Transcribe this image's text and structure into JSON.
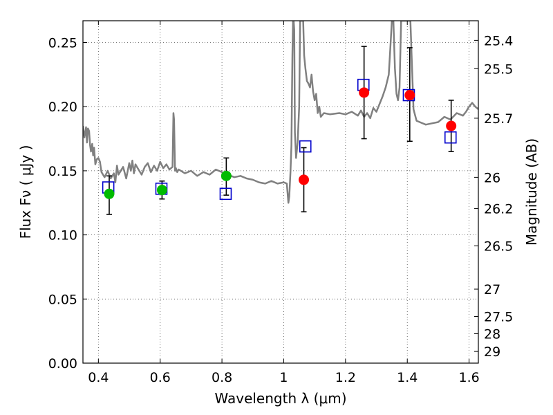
{
  "chart_data": {
    "type": "scatter",
    "xlabel": "Wavelength  λ (μm)",
    "ylabel": "Flux  Fν  ( μJy )",
    "y2label": "Magnitude (AB)",
    "xlim": [
      0.35,
      1.63
    ],
    "ylim": [
      0.0,
      0.267
    ],
    "grid": true,
    "x_ticks": [
      0.4,
      0.6,
      0.8,
      1.0,
      1.2,
      1.4,
      1.6
    ],
    "x_tick_labels": [
      "0.4",
      "0.6",
      "0.8",
      "1",
      "1.2",
      "1.4",
      "1.6"
    ],
    "y_ticks": [
      0.0,
      0.05,
      0.1,
      0.15,
      0.2,
      0.25
    ],
    "y_tick_labels": [
      "0.00",
      "0.05",
      "0.10",
      "0.15",
      "0.20",
      "0.25"
    ],
    "y2_ticks": [
      {
        "label": "25.4",
        "flux": 0.2517
      },
      {
        "label": "25.5",
        "flux": 0.2296
      },
      {
        "label": "25.7",
        "flux": 0.191
      },
      {
        "label": "26",
        "flux": 0.1449
      },
      {
        "label": "26.2",
        "flux": 0.1205
      },
      {
        "label": "26.5",
        "flux": 0.0914
      },
      {
        "label": "27",
        "flux": 0.0577
      },
      {
        "label": "27.5",
        "flux": 0.0364
      },
      {
        "label": "28",
        "flux": 0.0229
      },
      {
        "label": "29",
        "flux": 0.0091
      }
    ],
    "model_spectrum": {
      "color": "#808080",
      "x": [
        0.35,
        0.355,
        0.36,
        0.363,
        0.366,
        0.37,
        0.373,
        0.376,
        0.38,
        0.383,
        0.386,
        0.39,
        0.395,
        0.4,
        0.405,
        0.41,
        0.42,
        0.43,
        0.44,
        0.45,
        0.455,
        0.46,
        0.465,
        0.47,
        0.48,
        0.49,
        0.5,
        0.505,
        0.51,
        0.515,
        0.52,
        0.53,
        0.54,
        0.55,
        0.56,
        0.57,
        0.58,
        0.59,
        0.6,
        0.61,
        0.62,
        0.63,
        0.64,
        0.643,
        0.645,
        0.648,
        0.651,
        0.655,
        0.66,
        0.68,
        0.7,
        0.72,
        0.74,
        0.76,
        0.78,
        0.8,
        0.82,
        0.84,
        0.86,
        0.88,
        0.9,
        0.92,
        0.94,
        0.96,
        0.98,
        1.0,
        1.01,
        1.015,
        1.018,
        1.02,
        1.022,
        1.025,
        1.028,
        1.03,
        1.032,
        1.034,
        1.036,
        1.04,
        1.045,
        1.05,
        1.053,
        1.057,
        1.06,
        1.063,
        1.066,
        1.07,
        1.075,
        1.08,
        1.085,
        1.09,
        1.095,
        1.1,
        1.105,
        1.11,
        1.115,
        1.12,
        1.13,
        1.15,
        1.18,
        1.2,
        1.22,
        1.24,
        1.25,
        1.26,
        1.27,
        1.28,
        1.29,
        1.3,
        1.31,
        1.32,
        1.33,
        1.34,
        1.345,
        1.35,
        1.355,
        1.36,
        1.365,
        1.37,
        1.375,
        1.38,
        1.39,
        1.4,
        1.41,
        1.42,
        1.43,
        1.44,
        1.46,
        1.48,
        1.5,
        1.52,
        1.54,
        1.56,
        1.58,
        1.59,
        1.6,
        1.61,
        1.62,
        1.63
      ],
      "y": [
        0.185,
        0.176,
        0.184,
        0.172,
        0.183,
        0.181,
        0.17,
        0.165,
        0.171,
        0.162,
        0.168,
        0.155,
        0.159,
        0.16,
        0.157,
        0.149,
        0.145,
        0.15,
        0.144,
        0.148,
        0.141,
        0.154,
        0.147,
        0.149,
        0.153,
        0.144,
        0.156,
        0.15,
        0.158,
        0.148,
        0.155,
        0.151,
        0.147,
        0.153,
        0.156,
        0.149,
        0.154,
        0.15,
        0.157,
        0.152,
        0.155,
        0.151,
        0.153,
        0.195,
        0.19,
        0.15,
        0.152,
        0.149,
        0.151,
        0.148,
        0.15,
        0.146,
        0.149,
        0.147,
        0.151,
        0.149,
        0.147,
        0.145,
        0.146,
        0.144,
        0.143,
        0.141,
        0.14,
        0.142,
        0.14,
        0.141,
        0.14,
        0.125,
        0.13,
        0.14,
        0.15,
        0.17,
        0.24,
        0.267,
        0.267,
        0.26,
        0.18,
        0.16,
        0.172,
        0.2,
        0.267,
        0.267,
        0.267,
        0.267,
        0.24,
        0.23,
        0.22,
        0.218,
        0.215,
        0.225,
        0.212,
        0.205,
        0.21,
        0.195,
        0.2,
        0.192,
        0.195,
        0.194,
        0.195,
        0.194,
        0.196,
        0.193,
        0.197,
        0.192,
        0.195,
        0.191,
        0.199,
        0.196,
        0.202,
        0.208,
        0.215,
        0.225,
        0.245,
        0.267,
        0.267,
        0.23,
        0.21,
        0.205,
        0.215,
        0.267,
        0.267,
        0.267,
        0.267,
        0.198,
        0.189,
        0.188,
        0.186,
        0.187,
        0.188,
        0.192,
        0.19,
        0.195,
        0.193,
        0.196,
        0.2,
        0.203,
        0.2,
        0.198
      ]
    },
    "observed_points": [
      {
        "x": 0.435,
        "y": 0.132,
        "yerr_low": 0.016,
        "yerr_high": 0.014,
        "color": "#00bb00"
      },
      {
        "x": 0.606,
        "y": 0.135,
        "yerr_low": 0.007,
        "yerr_high": 0.007,
        "color": "#00bb00"
      },
      {
        "x": 0.814,
        "y": 0.146,
        "yerr_low": 0.015,
        "yerr_high": 0.014,
        "color": "#00bb00"
      },
      {
        "x": 1.065,
        "y": 0.143,
        "yerr_low": 0.025,
        "yerr_high": 0.025,
        "color": "#ff0000"
      },
      {
        "x": 1.26,
        "y": 0.211,
        "yerr_low": 0.036,
        "yerr_high": 0.036,
        "color": "#ff0000"
      },
      {
        "x": 1.408,
        "y": 0.209,
        "yerr_low": 0.036,
        "yerr_high": 0.037,
        "color": "#ff0000"
      },
      {
        "x": 1.542,
        "y": 0.185,
        "yerr_low": 0.02,
        "yerr_high": 0.02,
        "color": "#ff0000"
      }
    ],
    "model_points": {
      "color": "#0000cc",
      "x": [
        0.432,
        0.604,
        0.812,
        1.07,
        1.258,
        1.405,
        1.54
      ],
      "y": [
        0.137,
        0.136,
        0.132,
        0.169,
        0.217,
        0.209,
        0.176
      ]
    }
  }
}
